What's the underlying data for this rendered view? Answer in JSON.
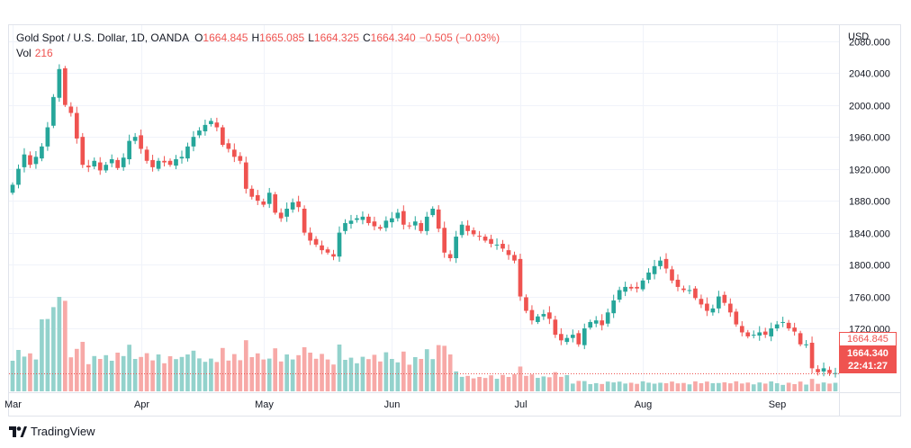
{
  "legend": {
    "symbol": "Gold Spot / U.S. Dollar, 1D, OANDA",
    "open_label": "O",
    "open": "1664.845",
    "high_label": "H",
    "high": "1665.085",
    "low_label": "L",
    "low": "1664.325",
    "close_label": "C",
    "close": "1664.340",
    "change": "−0.505 (−0.03%)",
    "vol_label": "Vol",
    "vol": "216"
  },
  "currency": "USD",
  "tags": {
    "open_price": "1664.845",
    "last_price": "1664.340",
    "countdown": "22:41:27"
  },
  "brand": {
    "name": "TradingView",
    "icon": "tradingview-logo-icon"
  },
  "colors": {
    "up": "#26a69a",
    "down": "#ef5350",
    "vol_up": "#93d2cc",
    "vol_down": "#f7a9a7",
    "grid": "#f0f3fa"
  },
  "chart_data": {
    "type": "candlestick",
    "title": "Gold Spot / U.S. Dollar, 1D, OANDA",
    "ylim": [
      1640,
      2100
    ],
    "yticks": [
      1720,
      1760,
      1800,
      1840,
      1880,
      1920,
      1960,
      2000,
      2040,
      2080
    ],
    "ytick_labels": [
      "1720.000",
      "1760.000",
      "1800.000",
      "1840.000",
      "1880.000",
      "1920.000",
      "1960.000",
      "2000.000",
      "2040.000",
      "2080.000"
    ],
    "xtick_labels": [
      {
        "label": "Mar",
        "index": 0
      },
      {
        "label": "Apr",
        "index": 22
      },
      {
        "label": "May",
        "index": 43
      },
      {
        "label": "Jun",
        "index": 65
      },
      {
        "label": "Jul",
        "index": 87
      },
      {
        "label": "Aug",
        "index": 108
      },
      {
        "label": "Sep",
        "index": 131
      }
    ],
    "grid": true,
    "legend": "top-left",
    "closes": [
      1900,
      1920,
      1938,
      1925,
      1935,
      1948,
      1972,
      2010,
      2045,
      2000,
      1990,
      1958,
      1925,
      1922,
      1930,
      1918,
      1925,
      1932,
      1921,
      1934,
      1955,
      1960,
      1945,
      1930,
      1922,
      1930,
      1928,
      1925,
      1932,
      1935,
      1948,
      1960,
      1968,
      1975,
      1980,
      1972,
      1950,
      1945,
      1935,
      1930,
      1895,
      1885,
      1880,
      1875,
      1890,
      1865,
      1858,
      1870,
      1878,
      1872,
      1840,
      1830,
      1825,
      1818,
      1815,
      1810,
      1840,
      1852,
      1855,
      1858,
      1860,
      1852,
      1848,
      1845,
      1855,
      1858,
      1865,
      1850,
      1848,
      1854,
      1842,
      1860,
      1870,
      1845,
      1815,
      1808,
      1835,
      1850,
      1842,
      1838,
      1835,
      1830,
      1826,
      1825,
      1820,
      1812,
      1805,
      1760,
      1742,
      1730,
      1735,
      1738,
      1732,
      1712,
      1705,
      1708,
      1712,
      1700,
      1720,
      1728,
      1730,
      1724,
      1740,
      1755,
      1768,
      1772,
      1770,
      1770,
      1780,
      1790,
      1798,
      1805,
      1795,
      1780,
      1772,
      1768,
      1768,
      1758,
      1750,
      1742,
      1745,
      1760,
      1752,
      1740,
      1725,
      1715,
      1710,
      1712,
      1715,
      1712,
      1720,
      1725,
      1728,
      1720,
      1716,
      1700,
      1700,
      1670,
      1665,
      1670,
      1664,
      1664
    ]
  }
}
